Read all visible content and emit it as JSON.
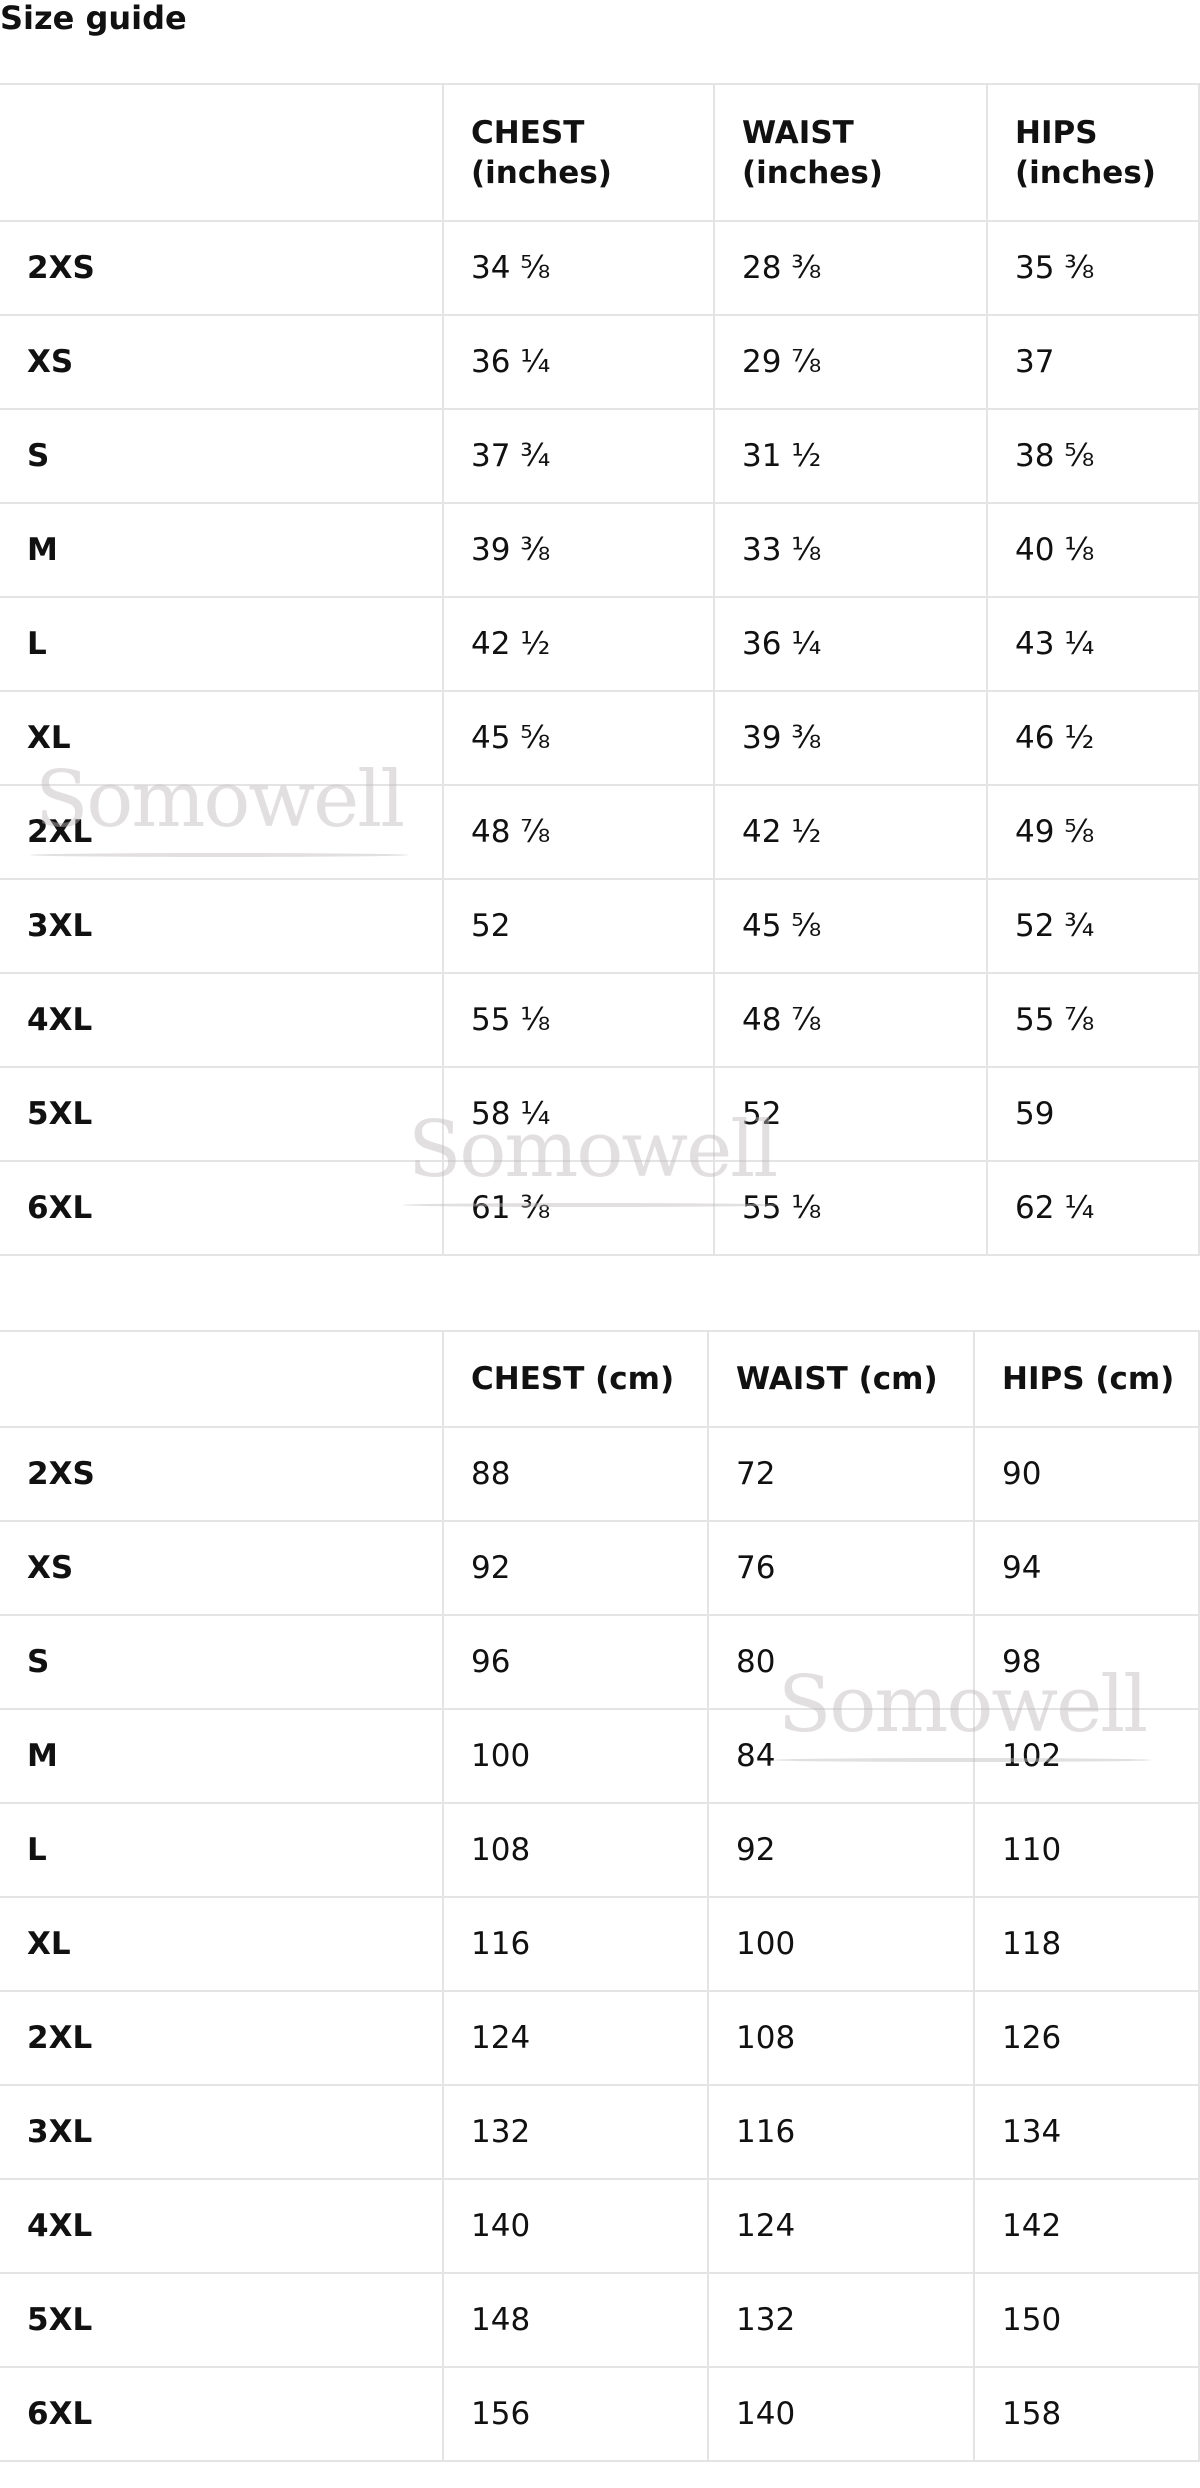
{
  "title": "Size guide",
  "watermark": "Somowell",
  "tables": [
    {
      "headers": [
        "",
        "CHEST (inches)",
        "WAIST (inches)",
        "HIPS (inches)"
      ],
      "rows": [
        [
          "2XS",
          "34 ⅝",
          "28 ⅜",
          "35 ⅜"
        ],
        [
          "XS",
          "36 ¼",
          "29 ⅞",
          "37"
        ],
        [
          "S",
          "37 ¾",
          "31 ½",
          "38 ⅝"
        ],
        [
          "M",
          "39 ⅜",
          "33 ⅛",
          "40 ⅛"
        ],
        [
          "L",
          "42 ½",
          "36 ¼",
          "43 ¼"
        ],
        [
          "XL",
          "45 ⅝",
          "39 ⅜",
          "46 ½"
        ],
        [
          "2XL",
          "48 ⅞",
          "42 ½",
          "49 ⅝"
        ],
        [
          "3XL",
          "52",
          "45 ⅝",
          "52 ¾"
        ],
        [
          "4XL",
          "55 ⅛",
          "48 ⅞",
          "55 ⅞"
        ],
        [
          "5XL",
          "58 ¼",
          "52",
          "59"
        ],
        [
          "6XL",
          "61 ⅜",
          "55 ⅛",
          "62 ¼"
        ]
      ]
    },
    {
      "headers": [
        "",
        "CHEST (cm)",
        "WAIST (cm)",
        "HIPS (cm)"
      ],
      "rows": [
        [
          "2XS",
          "88",
          "72",
          "90"
        ],
        [
          "XS",
          "92",
          "76",
          "94"
        ],
        [
          "S",
          "96",
          "80",
          "98"
        ],
        [
          "M",
          "100",
          "84",
          "102"
        ],
        [
          "L",
          "108",
          "92",
          "110"
        ],
        [
          "XL",
          "116",
          "100",
          "118"
        ],
        [
          "2XL",
          "124",
          "108",
          "126"
        ],
        [
          "3XL",
          "132",
          "116",
          "134"
        ],
        [
          "4XL",
          "140",
          "124",
          "142"
        ],
        [
          "5XL",
          "148",
          "132",
          "150"
        ],
        [
          "6XL",
          "156",
          "140",
          "158"
        ]
      ]
    }
  ]
}
